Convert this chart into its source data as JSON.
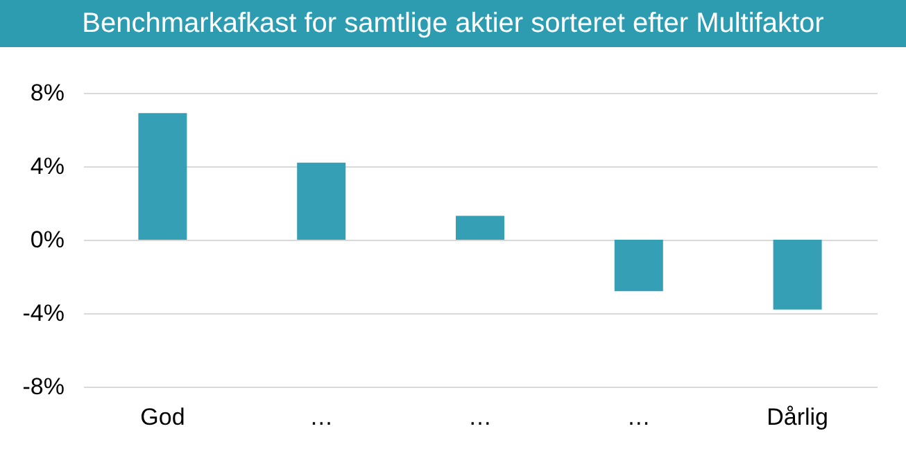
{
  "chart_data": {
    "type": "bar",
    "title": "Benchmarkafkast for samtlige aktier sorteret efter Multifaktor",
    "categories": [
      "God",
      "…",
      "…",
      "…",
      "Dårlig"
    ],
    "values": [
      6.9,
      4.2,
      1.3,
      -2.8,
      -3.8
    ],
    "color": "#35a0b5",
    "ylim": [
      -8,
      8
    ],
    "yticks": [
      {
        "value": -8,
        "label": "-8%"
      },
      {
        "value": -4,
        "label": "-4%"
      },
      {
        "value": 0,
        "label": "0%"
      },
      {
        "value": 4,
        "label": "4%"
      },
      {
        "value": 8,
        "label": "8%"
      }
    ],
    "grid": "y"
  }
}
